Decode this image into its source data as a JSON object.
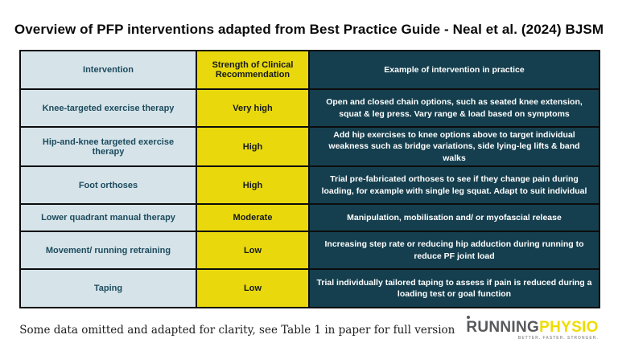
{
  "title": "Overview of PFP interventions adapted from Best Practice Guide - Neal et al. (2024) BJSM",
  "colors": {
    "intervention_bg": "#d6e4ea",
    "strength_bg": "#e9d90c",
    "example_bg": "#153f4e",
    "intervention_text": "#1d4b5d",
    "example_text": "#ffffff",
    "border": "#0c0c0c",
    "logo_gray": "#58595b",
    "logo_yellow": "#f0dc00"
  },
  "table": {
    "headers": [
      "Intervention",
      "Strength of Clinical Recommendation",
      "Example of intervention in practice"
    ],
    "rows": [
      {
        "intervention": "Knee-targeted exercise therapy",
        "strength": "Very high",
        "example": "Open and closed chain options, such as seated knee extension, squat & leg press. Vary range & load based on symptoms"
      },
      {
        "intervention": "Hip-and-knee targeted exercise therapy",
        "strength": "High",
        "example": "Add hip exercises to knee options above to target individual weakness such as bridge variations, side lying-leg lifts & band walks"
      },
      {
        "intervention": "Foot orthoses",
        "strength": "High",
        "example": "Trial pre-fabricated orthoses to see if they change pain during loading, for example with single leg squat. Adapt to suit individual"
      },
      {
        "intervention": "Lower quadrant manual therapy",
        "strength": "Moderate",
        "example": "Manipulation, mobilisation and/ or myofascial release"
      },
      {
        "intervention": "Movement/ running retraining",
        "strength": "Low",
        "example": "Increasing step rate or reducing hip adduction during running to reduce PF joint load"
      },
      {
        "intervention": "Taping",
        "strength": "Low",
        "example": "Trial individually tailored taping to assess if pain is reduced during a loading test or goal function"
      }
    ]
  },
  "footer": {
    "note": "Some data omitted and adapted for clarity, see Table 1 in paper for full version",
    "logo": {
      "part1": "RUNNING",
      "part2": "PHYSIO",
      "tagline": "BETTER. FASTER. STRONGER."
    }
  }
}
